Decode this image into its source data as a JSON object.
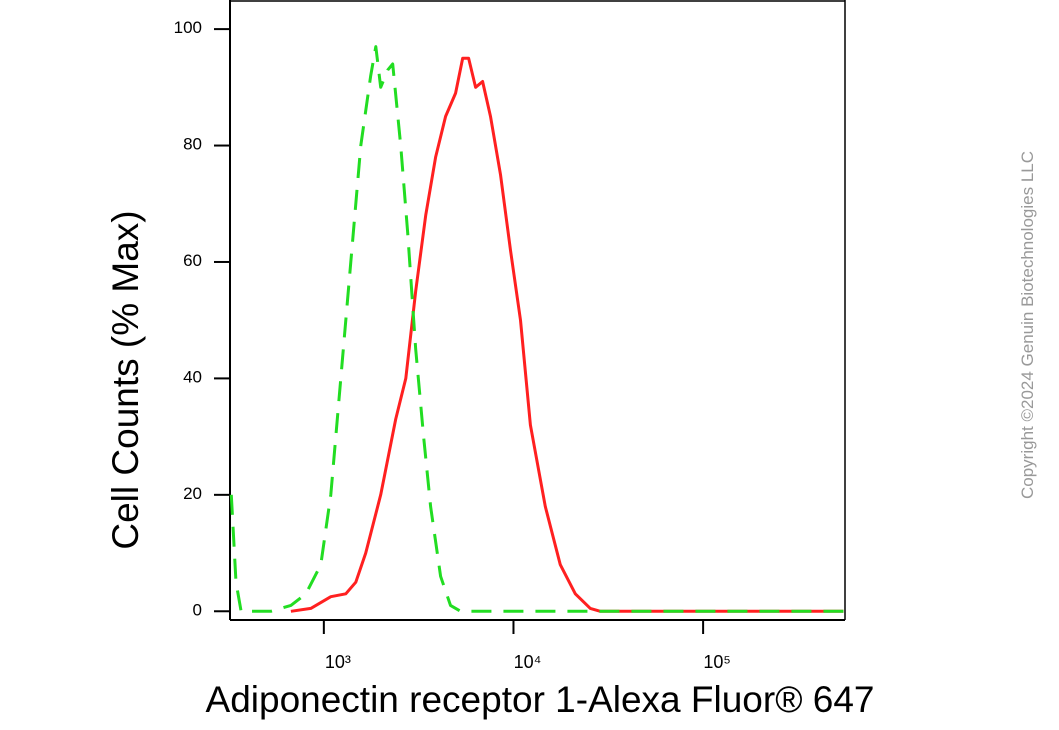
{
  "chart_data": {
    "type": "line",
    "x_label": "Adiponectin receptor 1-Alexa Fluor® 647",
    "y_label": "Cell Counts (% Max)",
    "copyright": "Copyright ©2024 Genuin Biotechnologies LLC",
    "x_scale": "log",
    "xlim": [
      320,
      560000
    ],
    "xticks": [
      {
        "value": 1000,
        "label": "10³"
      },
      {
        "value": 10000,
        "label": "10⁴"
      },
      {
        "value": 100000,
        "label": "10⁵"
      }
    ],
    "ylim": [
      -1.5,
      105
    ],
    "yticks": [
      0,
      20,
      40,
      60,
      80,
      100
    ],
    "series": [
      {
        "color": "#ff2020",
        "style": "solid",
        "x": [
          670,
          854,
          1088,
          1305,
          1474,
          1663,
          1995,
          2393,
          2704,
          3050,
          3443,
          3884,
          4385,
          4951,
          5395,
          5800,
          6310,
          6871,
          7568,
          8546,
          9640,
          10890,
          12280,
          14720,
          17660,
          21180,
          25410,
          28700,
          550000
        ],
        "values": [
          0,
          0.5,
          2.5,
          3,
          5,
          10,
          20,
          33,
          40,
          55,
          68,
          78,
          85,
          89,
          95,
          95,
          90,
          91,
          85,
          75,
          62,
          50,
          32,
          18,
          8,
          3,
          0.5,
          0,
          0
        ]
      },
      {
        "color": "#22dd22",
        "style": "dashed",
        "x": [
          325,
          344,
          366,
          526,
          670,
          804,
          964,
          1088,
          1228,
          1387,
          1566,
          1766,
          1879,
          1995,
          2173,
          2307,
          2542,
          2767,
          3050,
          3357,
          3656,
          4130,
          4656,
          5260,
          550000
        ],
        "values": [
          20,
          5,
          0,
          0,
          1,
          3,
          8,
          20,
          40,
          60,
          80,
          92,
          97,
          90,
          93,
          94,
          80,
          65,
          45,
          30,
          18,
          6,
          1,
          0,
          0
        ]
      }
    ]
  }
}
